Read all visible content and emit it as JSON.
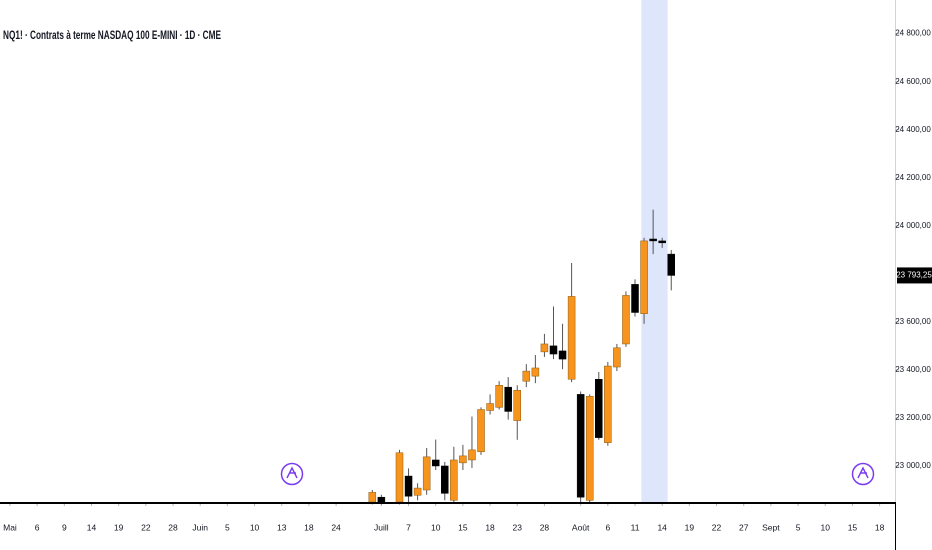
{
  "chart_data": {
    "type": "candlestick",
    "title": "NQ1! · Contrats à terme NASDAQ 100 E-MINI · 1D · CME",
    "x": [
      40,
      41,
      43,
      44,
      45,
      46,
      47,
      48,
      49,
      50,
      51,
      52,
      53,
      54,
      55,
      56,
      57,
      58,
      59,
      60,
      61,
      62,
      63,
      64,
      65,
      66,
      67,
      68,
      69,
      70,
      71,
      72,
      73
    ],
    "open": [
      22850,
      22870,
      22850,
      22958,
      22878,
      22900,
      23025,
      23000,
      22857,
      23013,
      23025,
      23059,
      23231,
      23244,
      23328,
      23189,
      23353,
      23374,
      23475,
      23500,
      23479,
      23361,
      23298,
      22857,
      23361,
      23097,
      23412,
      23508,
      23756,
      23634,
      23945,
      23937,
      23882
    ],
    "high": [
      22900,
      22880,
      23067,
      22990,
      22928,
      23075,
      23110,
      23017,
      23080,
      23088,
      23206,
      23244,
      23298,
      23353,
      23370,
      23336,
      23424,
      23462,
      23550,
      23664,
      23592,
      23845,
      23310,
      23298,
      23391,
      23433,
      23508,
      23727,
      23777,
      23950,
      24067,
      23950,
      23899
    ],
    "low": [
      22840,
      22840,
      22840,
      22845,
      22857,
      22880,
      22983,
      22857,
      22845,
      22983,
      22992,
      23046,
      23214,
      23235,
      23193,
      23109,
      23328,
      23345,
      23454,
      23445,
      23403,
      23349,
      22845,
      22849,
      23109,
      23084,
      23395,
      23496,
      23622,
      23592,
      23882,
      23908,
      23731
    ],
    "close": [
      22890,
      22850,
      23055,
      22874,
      22908,
      23038,
      23000,
      22886,
      23025,
      23042,
      23067,
      23235,
      23260,
      23336,
      23227,
      23315,
      23395,
      23408,
      23508,
      23466,
      23445,
      23706,
      22870,
      23290,
      23118,
      23416,
      23492,
      23710,
      23639,
      23937,
      23937,
      23929,
      23793.25
    ],
    "up_color": "#f7941d",
    "down_color": "#000000",
    "price_label": "23 793,25",
    "highlight": [
      69.7,
      72.6
    ],
    "highlight_color": "#dde6fb",
    "xlim": [
      -1.1,
      97.7
    ],
    "xticks": [
      {
        "value": 0,
        "label": "Mai"
      },
      {
        "value": 3,
        "label": "6"
      },
      {
        "value": 6,
        "label": "9"
      },
      {
        "value": 9,
        "label": "14"
      },
      {
        "value": 12,
        "label": "19"
      },
      {
        "value": 15,
        "label": "22"
      },
      {
        "value": 18,
        "label": "28"
      },
      {
        "value": 21,
        "label": "Juin"
      },
      {
        "value": 24,
        "label": "5"
      },
      {
        "value": 27,
        "label": "10"
      },
      {
        "value": 30,
        "label": "13"
      },
      {
        "value": 33,
        "label": "18"
      },
      {
        "value": 36,
        "label": "24"
      },
      {
        "value": 41,
        "label": "Juill"
      },
      {
        "value": 44,
        "label": "7"
      },
      {
        "value": 47,
        "label": "10"
      },
      {
        "value": 50,
        "label": "15"
      },
      {
        "value": 53,
        "label": "18"
      },
      {
        "value": 56,
        "label": "23"
      },
      {
        "value": 59,
        "label": "28"
      },
      {
        "value": 63,
        "label": "Août"
      },
      {
        "value": 66,
        "label": "6"
      },
      {
        "value": 69,
        "label": "11"
      },
      {
        "value": 72,
        "label": "14"
      },
      {
        "value": 75,
        "label": "19"
      },
      {
        "value": 78,
        "label": "22"
      },
      {
        "value": 81,
        "label": "27"
      },
      {
        "value": 84,
        "label": "Sept"
      },
      {
        "value": 87,
        "label": "5"
      },
      {
        "value": 90,
        "label": "10"
      },
      {
        "value": 93,
        "label": "15"
      },
      {
        "value": 96,
        "label": "18"
      }
    ],
    "ylim": [
      22850,
      24940
    ],
    "yticks": [
      {
        "value": 23000,
        "label": "23 000,00"
      },
      {
        "value": 23200,
        "label": "23 200,00"
      },
      {
        "value": 23400,
        "label": "23 400,00"
      },
      {
        "value": 23600,
        "label": "23 600,00"
      },
      {
        "value": 24000,
        "label": "24 000,00"
      },
      {
        "value": 24200,
        "label": "24 200,00"
      },
      {
        "value": 24400,
        "label": "24 400,00"
      },
      {
        "value": 24600,
        "label": "24 600,00"
      },
      {
        "value": 24800,
        "label": "24 800,00"
      }
    ]
  }
}
